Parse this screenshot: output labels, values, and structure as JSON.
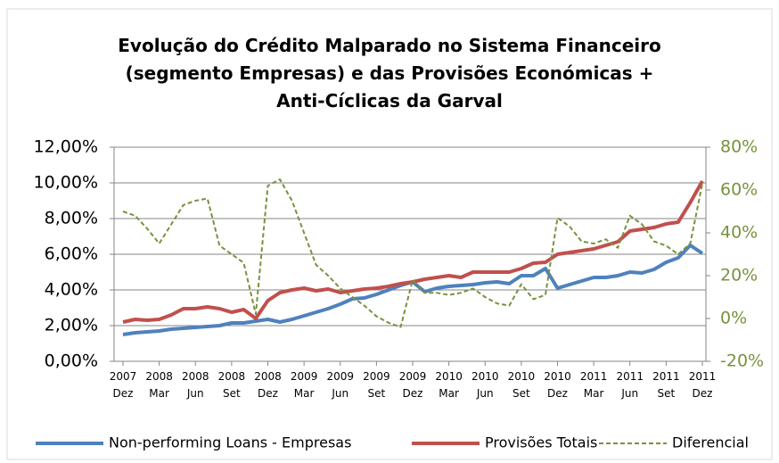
{
  "chart_data": {
    "type": "line",
    "title": "Evolução do Crédito Malparado no Sistema Financeiro (segmento Empresas) e das Provisões Económicas + Anti-Cíclicas da Garval",
    "categories": [
      "2007 Dez",
      null,
      null,
      "2008 Mar",
      null,
      null,
      "2008 Jun",
      null,
      null,
      "2008 Set",
      null,
      null,
      "2008 Dez",
      null,
      null,
      "2009 Mar",
      null,
      null,
      "2009 Jun",
      null,
      null,
      "2009 Set",
      null,
      null,
      "2009 Dez",
      null,
      null,
      "2010 Mar",
      null,
      null,
      "2010 Jun",
      null,
      null,
      "2010 Set",
      null,
      null,
      "2010 Dez",
      null,
      null,
      "2011 Mar",
      null,
      null,
      "2011 Jun",
      null,
      null,
      "2011 Set",
      null,
      null,
      "2011 Dez"
    ],
    "series": [
      {
        "name": "Non-performing Loans - Empresas",
        "color": "#4f81bd",
        "axis": "y",
        "values": [
          1.5,
          1.6,
          1.65,
          1.7,
          1.8,
          1.85,
          1.9,
          1.95,
          2.0,
          2.15,
          2.15,
          2.25,
          2.35,
          2.2,
          2.35,
          2.55,
          2.75,
          2.95,
          3.2,
          3.5,
          3.55,
          3.75,
          4.0,
          4.25,
          4.45,
          3.9,
          4.1,
          4.2,
          4.25,
          4.3,
          4.4,
          4.45,
          4.35,
          4.8,
          4.8,
          5.2,
          4.1,
          4.3,
          4.5,
          4.7,
          4.7,
          4.8,
          5.0,
          4.95,
          5.15,
          5.55,
          5.8,
          6.5,
          6.05
        ]
      },
      {
        "name": "Provisões Totais",
        "color": "#c0504d",
        "axis": "y",
        "values": [
          2.2,
          2.35,
          2.3,
          2.35,
          2.6,
          2.95,
          2.95,
          3.05,
          2.95,
          2.75,
          2.9,
          2.4,
          3.4,
          3.85,
          4.0,
          4.1,
          3.95,
          4.05,
          3.85,
          3.95,
          4.05,
          4.1,
          4.2,
          4.35,
          4.45,
          4.6,
          4.7,
          4.8,
          4.7,
          5.0,
          5.0,
          5.0,
          5.0,
          5.2,
          5.5,
          5.55,
          6.0,
          6.1,
          6.2,
          6.3,
          6.5,
          6.7,
          7.3,
          7.4,
          7.5,
          7.7,
          7.8,
          8.9,
          10.1
        ]
      },
      {
        "name": "Diferencial",
        "color": "#77933c",
        "axis": "y2",
        "dashed": true,
        "values": [
          50,
          48,
          42,
          35,
          44,
          53,
          55,
          56,
          34,
          30,
          26,
          2,
          62,
          65,
          55,
          40,
          25,
          20,
          14,
          10,
          6,
          1,
          -2,
          -4,
          18,
          12,
          12,
          11,
          12,
          14,
          10,
          7,
          6,
          16,
          9,
          11,
          47,
          43,
          36,
          35,
          37,
          33,
          48,
          44,
          36,
          34,
          30,
          35,
          63
        ]
      }
    ],
    "ylim": [
      0,
      12
    ],
    "yticks": [
      {
        "value": 0,
        "label": "0,00%"
      },
      {
        "value": 2,
        "label": "2,00%"
      },
      {
        "value": 4,
        "label": "4,00%"
      },
      {
        "value": 6,
        "label": "6,00%"
      },
      {
        "value": 8,
        "label": "8,00%"
      },
      {
        "value": 10,
        "label": "10,00%"
      },
      {
        "value": 12,
        "label": "12,00%"
      }
    ],
    "y2lim": [
      -20,
      80
    ],
    "y2ticks": [
      {
        "value": -20,
        "label": "-20%"
      },
      {
        "value": 0,
        "label": "0%"
      },
      {
        "value": 20,
        "label": "20%"
      },
      {
        "value": 40,
        "label": "40%"
      },
      {
        "value": 60,
        "label": "60%"
      },
      {
        "value": 80,
        "label": "80%"
      }
    ],
    "y2color": "#77933c",
    "grid": true,
    "legend": "bottom"
  }
}
